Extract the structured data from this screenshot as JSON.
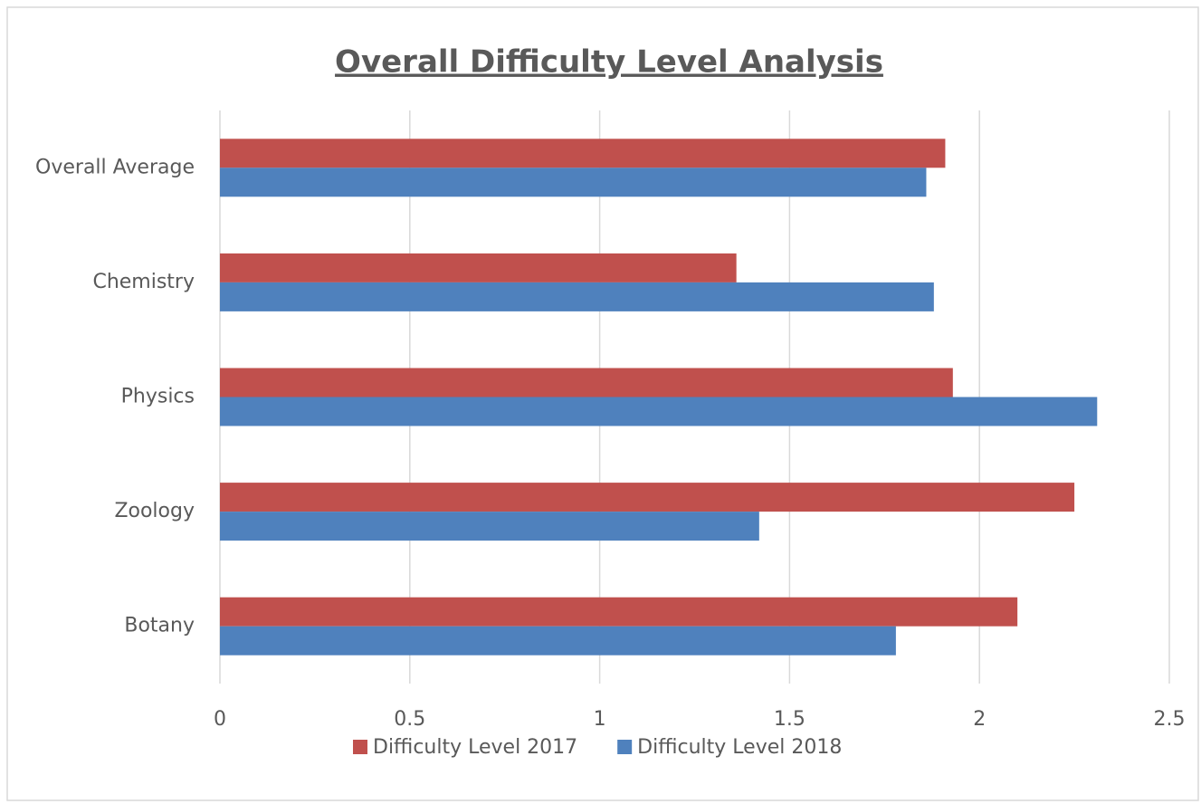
{
  "chart_data": {
    "type": "bar",
    "orientation": "horizontal",
    "title": "Overall Difficulty Level Analysis",
    "categories": [
      "Overall Average",
      "Chemistry",
      "Physics",
      "Zoology",
      "Botany"
    ],
    "series": [
      {
        "name": "Difficulty Level 2017",
        "color": "#c0504d",
        "values": [
          1.91,
          1.36,
          1.93,
          2.25,
          2.1
        ]
      },
      {
        "name": "Difficulty Level 2018",
        "color": "#4f81bd",
        "values": [
          1.86,
          1.88,
          2.31,
          1.42,
          1.78
        ]
      }
    ],
    "xlim": [
      0,
      2.5
    ],
    "xticks": [
      0,
      0.5,
      1,
      1.5,
      2,
      2.5
    ],
    "grid": true,
    "legend": "bottom"
  }
}
